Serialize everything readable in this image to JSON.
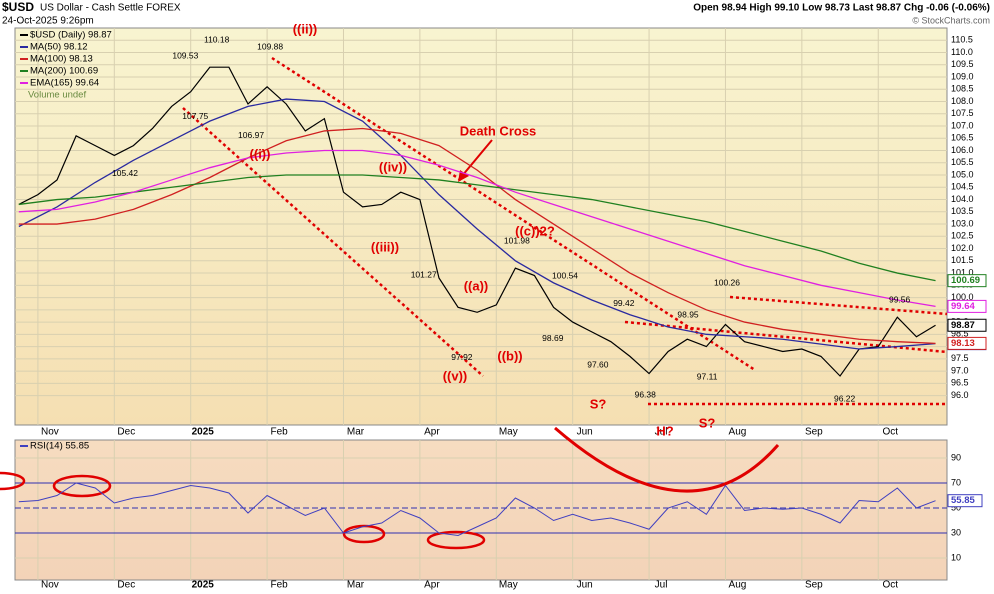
{
  "header": {
    "title": "$USD",
    "subtitle": "US Dollar - Cash Settle FOREX",
    "date": "24-Oct-2025 9:26pm",
    "quote": "Open 98.94 High 99.10 Low 98.73 Last 98.87 Chg -0.06 (-0.06%)",
    "credit": "© StockCharts.com"
  },
  "chart_data": [
    {
      "type": "line",
      "xlim": [
        -0.3,
        11.9
      ],
      "xticks": [
        {
          "value": 0,
          "label": "Nov"
        },
        {
          "value": 1,
          "label": "Dec"
        },
        {
          "value": 2,
          "label": "2025"
        },
        {
          "value": 3,
          "label": "Feb"
        },
        {
          "value": 4,
          "label": "Mar"
        },
        {
          "value": 5,
          "label": "Apr"
        },
        {
          "value": 6,
          "label": "May"
        },
        {
          "value": 7,
          "label": "Jun"
        },
        {
          "value": 8,
          "label": "Jul"
        },
        {
          "value": 9,
          "label": "Aug"
        },
        {
          "value": 10,
          "label": "Sep"
        },
        {
          "value": 11,
          "label": "Oct"
        }
      ],
      "ylim": [
        94.8,
        111.0
      ],
      "yticks": [
        {
          "value": 96,
          "label": "96.0"
        },
        96.5,
        {
          "value": 97,
          "label": "97.0"
        },
        97.5,
        {
          "value": 98,
          "label": "98.0"
        },
        98.5,
        {
          "value": 99,
          "label": "99.0"
        },
        99.5,
        {
          "value": 100,
          "label": "100.0"
        },
        100.5,
        {
          "value": 101,
          "label": "101.0"
        },
        101.5,
        {
          "value": 102,
          "label": "102.0"
        },
        102.5,
        {
          "value": 103,
          "label": "103.0"
        },
        103.5,
        {
          "value": 104,
          "label": "104.0"
        },
        104.5,
        {
          "value": 105,
          "label": "105.0"
        },
        105.5,
        {
          "value": 106,
          "label": "106.0"
        },
        106.5,
        {
          "value": 107,
          "label": "107.0"
        },
        107.5,
        {
          "value": 108,
          "label": "108.0"
        },
        108.5,
        {
          "value": 109,
          "label": "109.0"
        },
        109.5,
        {
          "value": 110,
          "label": "110.0"
        },
        110.5
      ],
      "grid": true,
      "x": [
        -0.25,
        0,
        0.25,
        0.5,
        0.75,
        1,
        1.25,
        1.5,
        1.75,
        2,
        2.25,
        2.5,
        2.75,
        3,
        3.25,
        3.5,
        3.75,
        4,
        4.25,
        4.5,
        4.75,
        5,
        5.25,
        5.5,
        5.75,
        6,
        6.25,
        6.5,
        6.75,
        7,
        7.25,
        7.5,
        7.75,
        8,
        8.25,
        8.5,
        8.75,
        9,
        9.25,
        9.5,
        9.75,
        10,
        10.25,
        10.5,
        10.75,
        11,
        11.25,
        11.5,
        11.75
      ],
      "series": [
        {
          "name": "$USD (Daily) 98.87",
          "color": "#000000",
          "values": [
            103.8,
            104.2,
            104.8,
            106.6,
            106.2,
            105.8,
            106.2,
            106.9,
            107.8,
            108.4,
            109.4,
            109.4,
            107.9,
            108.6,
            107.9,
            106.8,
            107.3,
            104.3,
            103.7,
            103.8,
            104.3,
            104.0,
            100.8,
            99.6,
            99.4,
            99.7,
            101.2,
            100.9,
            99.6,
            99.0,
            98.6,
            98.2,
            97.6,
            96.9,
            97.8,
            98.3,
            98.0,
            98.9,
            98.2,
            98.0,
            97.8,
            97.9,
            97.6,
            96.8,
            97.9,
            98.0,
            99.2,
            98.4,
            98.87
          ]
        },
        {
          "name": "MA(50) 98.12",
          "color": "#2a2aa0",
          "x": [
            -0.25,
            0.25,
            0.75,
            1.25,
            1.75,
            2.25,
            2.75,
            3.25,
            3.75,
            4.25,
            4.75,
            5.25,
            5.75,
            6.25,
            6.75,
            7.25,
            7.75,
            8.25,
            8.75,
            9.25,
            9.75,
            10.25,
            10.75,
            11.25,
            11.75
          ],
          "values": [
            102.9,
            103.7,
            104.7,
            105.6,
            106.4,
            107.2,
            107.8,
            108.1,
            108.0,
            107.2,
            105.8,
            104.2,
            102.8,
            101.5,
            100.6,
            99.9,
            99.3,
            98.8,
            98.5,
            98.4,
            98.3,
            98.1,
            97.9,
            98.0,
            98.12
          ]
        },
        {
          "name": "MA(100) 98.13",
          "color": "#d02020",
          "x": [
            -0.25,
            0.25,
            0.75,
            1.25,
            1.75,
            2.25,
            2.75,
            3.25,
            3.75,
            4.25,
            4.75,
            5.25,
            5.75,
            6.25,
            6.75,
            7.25,
            7.75,
            8.25,
            8.75,
            9.25,
            9.75,
            10.25,
            10.75,
            11.25,
            11.75
          ],
          "values": [
            103.0,
            103.0,
            103.2,
            103.6,
            104.2,
            104.9,
            105.7,
            106.4,
            106.8,
            106.9,
            106.7,
            106.2,
            105.2,
            104.0,
            103.0,
            102.0,
            101.0,
            100.2,
            99.5,
            99.0,
            98.7,
            98.5,
            98.3,
            98.2,
            98.13
          ]
        },
        {
          "name": "MA(200) 100.69",
          "color": "#208020",
          "x": [
            -0.25,
            0.25,
            0.75,
            1.25,
            1.75,
            2.25,
            2.75,
            3.25,
            3.75,
            4.25,
            4.75,
            5.25,
            5.75,
            6.25,
            6.75,
            7.25,
            7.75,
            8.25,
            8.75,
            9.25,
            9.75,
            10.25,
            10.75,
            11.25,
            11.75
          ],
          "values": [
            103.8,
            104.0,
            104.1,
            104.3,
            104.5,
            104.7,
            104.9,
            105.0,
            105.0,
            105.0,
            104.9,
            104.8,
            104.6,
            104.4,
            104.2,
            104.0,
            103.7,
            103.4,
            103.1,
            102.7,
            102.3,
            101.9,
            101.4,
            101.0,
            100.69
          ]
        },
        {
          "name": "EMA(165) 99.64",
          "color": "#e020e0",
          "x": [
            -0.25,
            0.25,
            0.75,
            1.25,
            1.75,
            2.25,
            2.75,
            3.25,
            3.75,
            4.25,
            4.75,
            5.25,
            5.75,
            6.25,
            6.75,
            7.25,
            7.75,
            8.25,
            8.75,
            9.25,
            9.75,
            10.25,
            10.75,
            11.25,
            11.75
          ],
          "values": [
            103.5,
            103.6,
            103.9,
            104.3,
            104.8,
            105.3,
            105.7,
            105.9,
            106.0,
            106.0,
            105.8,
            105.4,
            104.9,
            104.3,
            103.8,
            103.3,
            102.8,
            102.3,
            101.8,
            101.3,
            100.9,
            100.5,
            100.2,
            99.9,
            99.64
          ]
        }
      ],
      "volume_label": "Volume undef",
      "price_labels": [
        {
          "x": 1.14,
          "value": 105.42
        },
        {
          "x": 2.06,
          "value": 107.75
        },
        {
          "x": 1.93,
          "value": 109.53
        },
        {
          "x": 2.34,
          "value": 110.18
        },
        {
          "x": 3.04,
          "value": 109.88
        },
        {
          "x": 2.79,
          "value": 106.97
        },
        {
          "x": 5.05,
          "value": 101.27
        },
        {
          "x": 5.55,
          "value": 97.92
        },
        {
          "x": 6.27,
          "value": 101.98
        },
        {
          "x": 6.9,
          "value": 100.54
        },
        {
          "x": 6.74,
          "value": 98.69
        },
        {
          "x": 7.67,
          "value": 99.42
        },
        {
          "x": 7.33,
          "value": {
            "value": 97.6,
            "label": "97.60"
          }
        },
        {
          "x": 7.95,
          "value": 96.38
        },
        {
          "x": 8.51,
          "value": 98.95
        },
        {
          "x": 8.76,
          "value": 97.11
        },
        {
          "x": 9.02,
          "value": 100.26
        },
        {
          "x": 10.56,
          "value": 96.22
        },
        {
          "x": 11.28,
          "value": 99.56
        }
      ],
      "annotations": [
        "((ii))",
        "((i))",
        "((iv))",
        "((iii))",
        "((v))",
        "((a))",
        "((b))",
        "((c))2?",
        "Death Cross",
        "S?",
        "H?",
        "S?"
      ]
    },
    {
      "type": "line",
      "title": "RSI(14) 55.85",
      "color": "#4040c0",
      "xlim": [
        -0.3,
        11.9
      ],
      "xticks": [
        {
          "value": 0,
          "label": "Nov"
        },
        {
          "value": 1,
          "label": "Dec"
        },
        {
          "value": 2,
          "label": "2025"
        },
        {
          "value": 3,
          "label": "Feb"
        },
        {
          "value": 4,
          "label": "Mar"
        },
        {
          "value": 5,
          "label": "Apr"
        },
        {
          "value": 6,
          "label": "May"
        },
        {
          "value": 7,
          "label": "Jun"
        },
        {
          "value": 8,
          "label": "Jul"
        },
        {
          "value": 9,
          "label": "Aug"
        },
        {
          "value": 10,
          "label": "Sep"
        },
        {
          "value": 11,
          "label": "Oct"
        }
      ],
      "ylim": [
        -7.6,
        104.4
      ],
      "yticks": [
        10,
        30,
        50,
        70,
        90
      ],
      "grid": true,
      "x": [
        -0.25,
        0,
        0.25,
        0.5,
        0.75,
        1,
        1.25,
        1.5,
        1.75,
        2,
        2.25,
        2.5,
        2.75,
        3,
        3.25,
        3.5,
        3.75,
        4,
        4.25,
        4.5,
        4.75,
        5,
        5.25,
        5.5,
        5.75,
        6,
        6.25,
        6.5,
        6.75,
        7,
        7.25,
        7.5,
        7.75,
        8,
        8.25,
        8.5,
        8.75,
        9,
        9.25,
        9.5,
        9.75,
        10,
        10.25,
        10.5,
        10.75,
        11,
        11.25,
        11.5,
        11.75
      ],
      "values": [
        55,
        56,
        60,
        70,
        66,
        54,
        58,
        60,
        64,
        68,
        66,
        62,
        46,
        60,
        52,
        44,
        50,
        30,
        35,
        38,
        48,
        42,
        30,
        28,
        35,
        42,
        58,
        50,
        40,
        45,
        40,
        42,
        38,
        33,
        50,
        55,
        45,
        68,
        48,
        50,
        49,
        50,
        45,
        38,
        56,
        55,
        66,
        50,
        55.85
      ]
    }
  ]
}
